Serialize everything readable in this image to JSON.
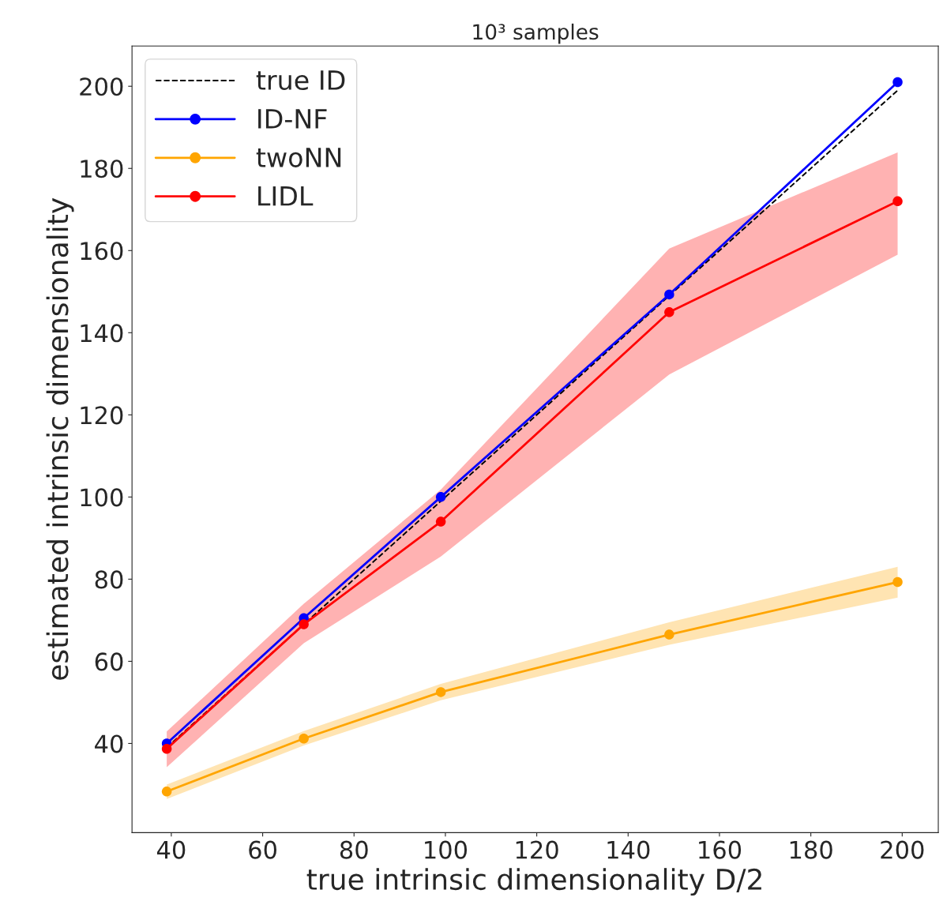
{
  "chart_data": {
    "type": "line",
    "title": "10³ samples",
    "xlabel": "true intrinsic dimensionality D/2",
    "ylabel": "estimated intrinsic dimensionality",
    "x": [
      39,
      69,
      99,
      149,
      199
    ],
    "series": [
      {
        "name": "true ID",
        "color": "#000000",
        "values": [
          39,
          69,
          99,
          149,
          199
        ],
        "line_style": "dashed",
        "marker": "none"
      },
      {
        "name": "ID-NF",
        "color": "#0000ff",
        "values": [
          40,
          70.5,
          100,
          149.3,
          201
        ],
        "line_style": "solid",
        "marker": "circle"
      },
      {
        "name": "twoNN",
        "color": "#ffa500",
        "values": [
          28.3,
          41.2,
          52.5,
          66.5,
          79.3
        ],
        "lower": [
          26.5,
          39.5,
          50.5,
          64,
          75.5
        ],
        "upper": [
          30,
          43,
          54.5,
          69.5,
          83
        ],
        "line_style": "solid",
        "marker": "circle"
      },
      {
        "name": "LIDL",
        "color": "#ff0000",
        "values": [
          38.7,
          69,
          94,
          145,
          172
        ],
        "lower": [
          34.2,
          64.4,
          85.5,
          129.8,
          159
        ],
        "upper": [
          42.9,
          74,
          101.8,
          160.5,
          183.9
        ],
        "line_style": "solid",
        "marker": "circle"
      }
    ],
    "xlim": [
      31.4,
      207.9
    ],
    "ylim": [
      18.3,
      209.8
    ],
    "xticks": [
      40,
      60,
      80,
      100,
      120,
      140,
      160,
      180,
      200
    ],
    "yticks": [
      40,
      60,
      80,
      100,
      120,
      140,
      160,
      180,
      200
    ],
    "grid": false,
    "legend": "top left"
  }
}
